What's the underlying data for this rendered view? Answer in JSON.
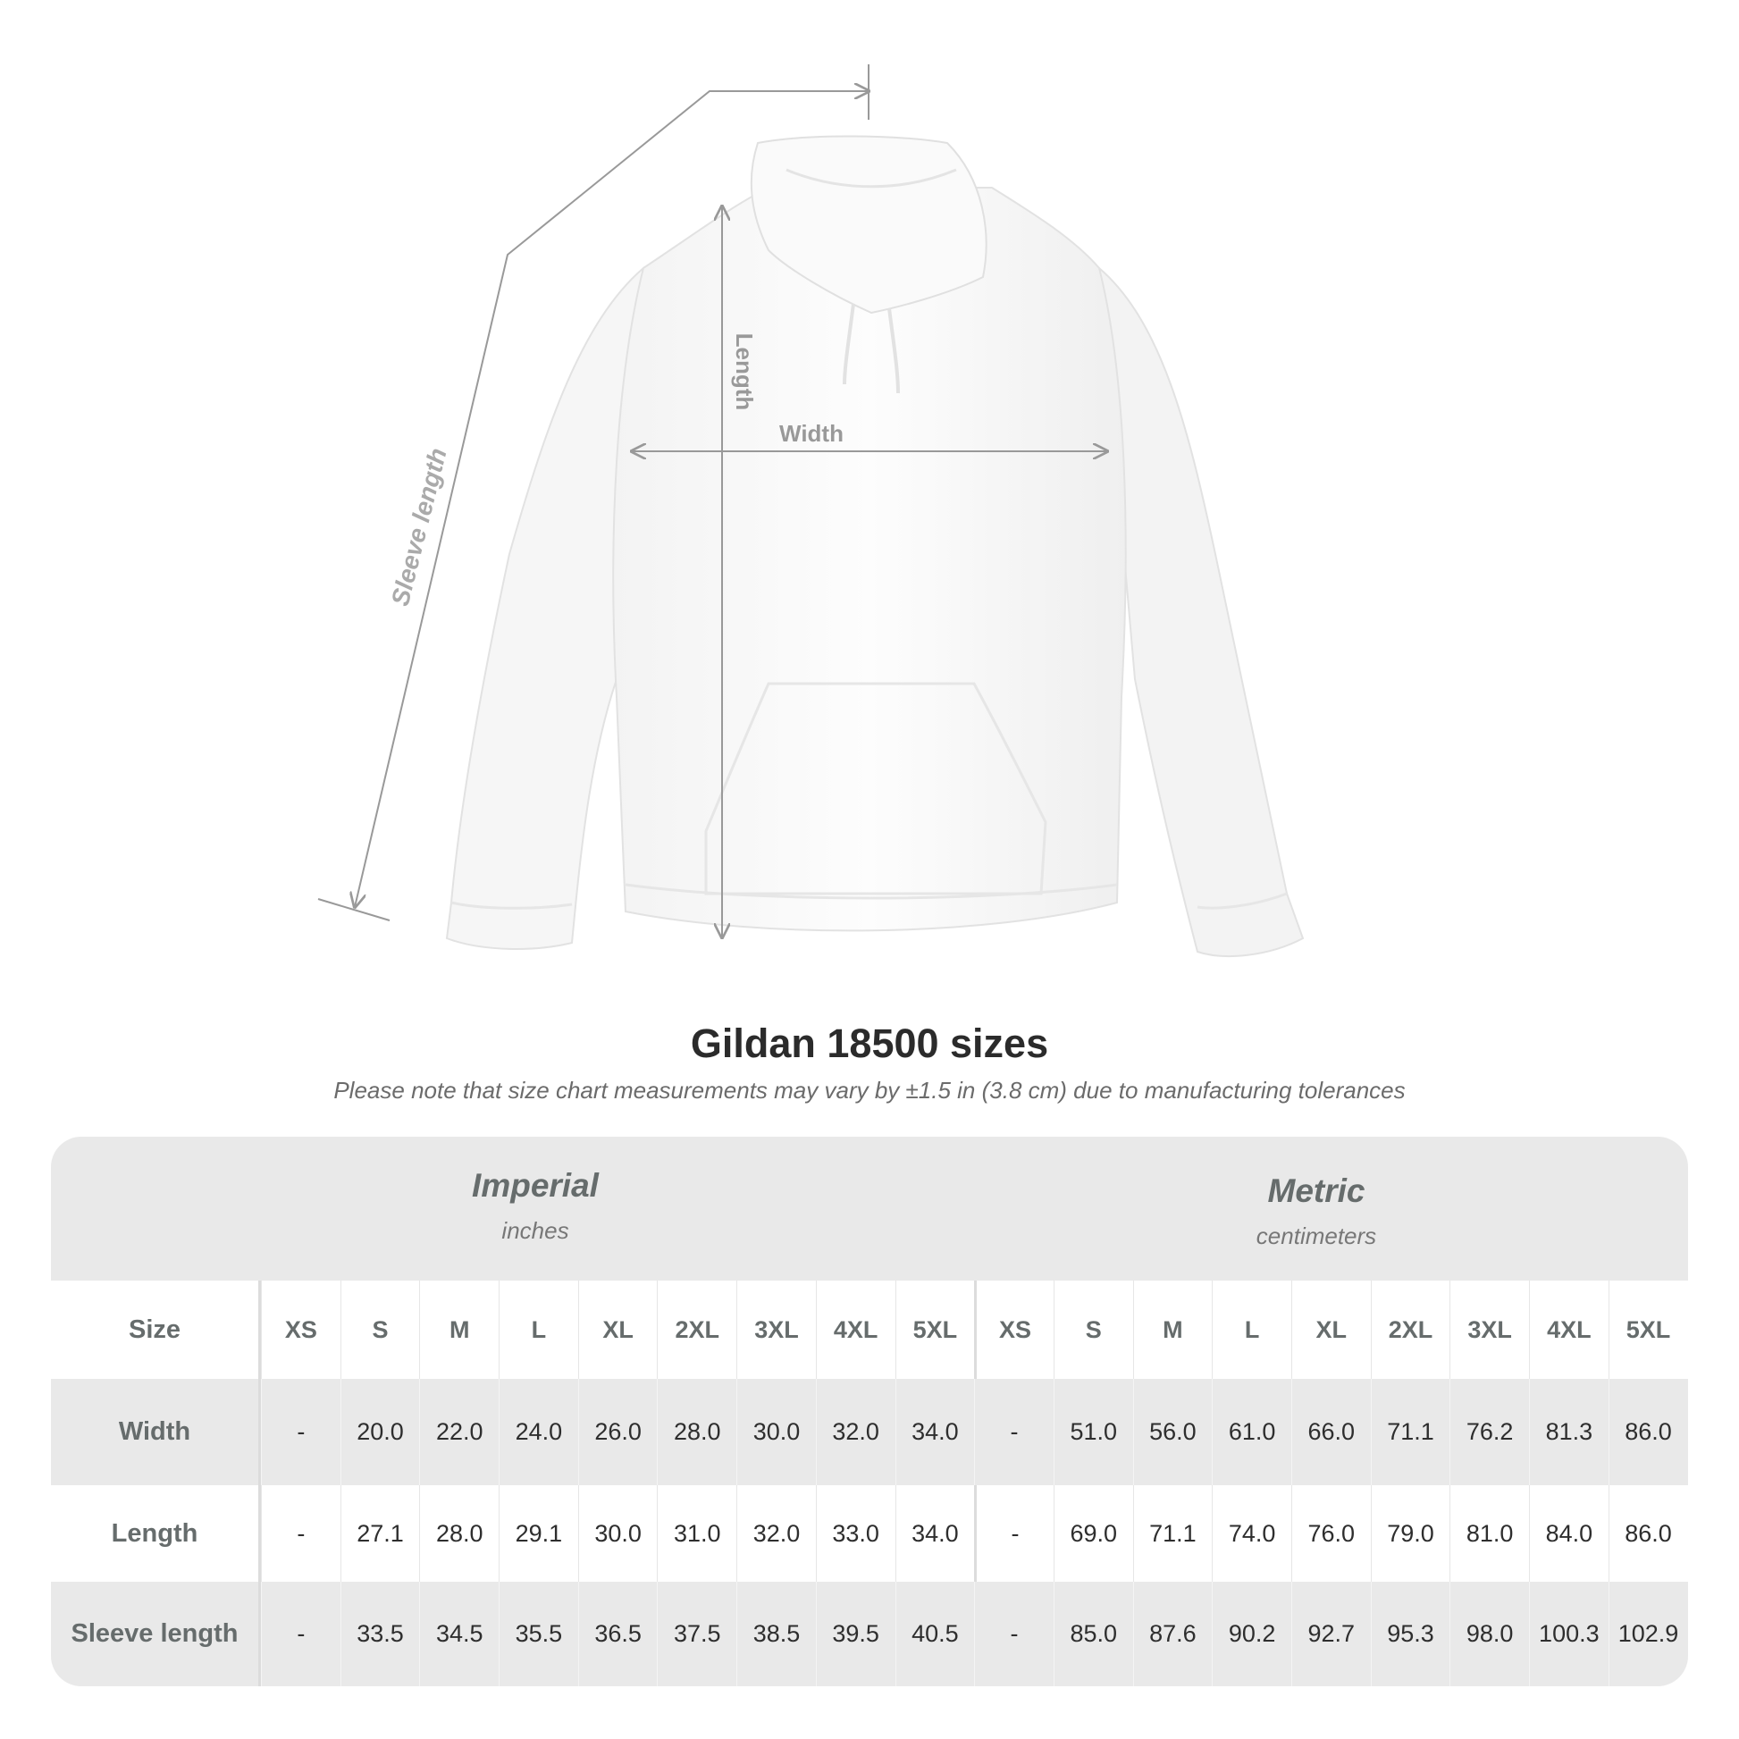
{
  "diagram": {
    "labels": {
      "sleeve": "Sleeve length",
      "length": "Length",
      "width": "Width"
    }
  },
  "title": "Gildan 18500 sizes",
  "note": "Please note that size chart measurements may vary by ±1.5 in (3.8 cm) due to manufacturing tolerances",
  "table": {
    "imperial": {
      "name": "Imperial",
      "unit": "inches"
    },
    "metric": {
      "name": "Metric",
      "unit": "centimeters"
    },
    "size_label": "Size",
    "sizes": [
      "XS",
      "S",
      "M",
      "L",
      "XL",
      "2XL",
      "3XL",
      "4XL",
      "5XL"
    ],
    "rows": [
      {
        "label": "Width",
        "imperial": [
          "-",
          "20.0",
          "22.0",
          "24.0",
          "26.0",
          "28.0",
          "30.0",
          "32.0",
          "34.0"
        ],
        "metric": [
          "-",
          "51.0",
          "56.0",
          "61.0",
          "66.0",
          "71.1",
          "76.2",
          "81.3",
          "86.0"
        ]
      },
      {
        "label": "Length",
        "imperial": [
          "-",
          "27.1",
          "28.0",
          "29.1",
          "30.0",
          "31.0",
          "32.0",
          "33.0",
          "34.0"
        ],
        "metric": [
          "-",
          "69.0",
          "71.1",
          "74.0",
          "76.0",
          "79.0",
          "81.0",
          "84.0",
          "86.0"
        ]
      },
      {
        "label": "Sleeve length",
        "imperial": [
          "-",
          "33.5",
          "34.5",
          "35.5",
          "36.5",
          "37.5",
          "38.5",
          "39.5",
          "40.5"
        ],
        "metric": [
          "-",
          "85.0",
          "87.6",
          "90.2",
          "92.7",
          "95.3",
          "98.0",
          "100.3",
          "102.9"
        ]
      }
    ]
  }
}
